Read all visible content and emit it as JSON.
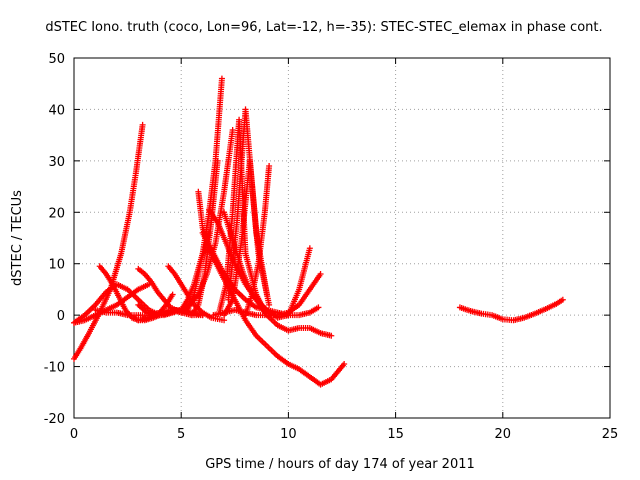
{
  "chart_data": {
    "type": "scatter",
    "title": "dSTEC Iono. truth (coco, Lon=96, Lat=-12, h=-35): STEC-STEC_elemax in phase cont.",
    "xlabel": "GPS time / hours of day 174 of year 2011",
    "ylabel": "dSTEC  / TECUs",
    "xlim": [
      0,
      25
    ],
    "ylim": [
      -20,
      50
    ],
    "xticks": [
      0,
      5,
      10,
      15,
      20,
      25
    ],
    "yticks": [
      -20,
      -10,
      0,
      10,
      20,
      30,
      40,
      50
    ],
    "grid": true,
    "marker": "plus",
    "color": "#ff0000",
    "series": [
      {
        "x": [
          0.0,
          0.3,
          0.7,
          1.2,
          1.7,
          2.2,
          2.6,
          2.9,
          3.2
        ],
        "y": [
          -8.5,
          -6.5,
          -3.5,
          0.5,
          5,
          12,
          20,
          28,
          37
        ]
      },
      {
        "x": [
          0.0,
          0.5,
          1.0,
          1.5,
          2.0,
          2.5,
          3.0,
          3.5,
          4.0
        ],
        "y": [
          -1.5,
          0,
          2,
          4.5,
          6,
          5,
          3,
          1,
          0
        ]
      },
      {
        "x": [
          0.0,
          0.5,
          1.0,
          1.5,
          2.0,
          2.5,
          3.0,
          3.5
        ],
        "y": [
          -1.5,
          -1,
          0,
          1,
          2,
          3.5,
          5,
          6
        ]
      },
      {
        "x": [
          1.2,
          1.5,
          1.8,
          2.1,
          2.4,
          2.7,
          3.0,
          3.3,
          3.7,
          4.0
        ],
        "y": [
          9.5,
          8,
          6,
          3.5,
          1,
          -0.5,
          -1,
          -1,
          -0.5,
          0
        ]
      },
      {
        "x": [
          1.0,
          1.5,
          2.0,
          2.5,
          3.0,
          3.5,
          4.0,
          4.5,
          5.0,
          5.5,
          6.0
        ],
        "y": [
          1,
          0.5,
          0.5,
          0,
          0,
          0,
          0.5,
          1,
          1,
          0.5,
          0
        ]
      },
      {
        "x": [
          3.0,
          3.3,
          3.6,
          3.9,
          4.2,
          4.5,
          5.0,
          5.5,
          6.0
        ],
        "y": [
          9,
          8,
          6.5,
          4.5,
          3,
          1.5,
          0.5,
          0,
          0
        ]
      },
      {
        "x": [
          3.0,
          3.4,
          3.8,
          4.2,
          4.6,
          5.0,
          5.4,
          5.8,
          6.2,
          6.6,
          7.0,
          7.4
        ],
        "y": [
          2,
          0.5,
          0,
          0,
          0.5,
          1,
          2,
          4,
          8,
          14,
          24,
          36
        ]
      },
      {
        "x": [
          3.0,
          3.5,
          4.0,
          4.3,
          4.6
        ],
        "y": [
          -1,
          -0.5,
          0.5,
          2,
          4
        ]
      },
      {
        "x": [
          4.0,
          4.5,
          5.0,
          5.3,
          5.6,
          6.0,
          6.3,
          6.6,
          6.9
        ],
        "y": [
          0,
          0.5,
          1,
          3,
          6,
          12,
          20,
          30,
          46
        ]
      },
      {
        "x": [
          4.4,
          4.7,
          5.0,
          5.3,
          5.6,
          6.0,
          6.4,
          7.0
        ],
        "y": [
          9.5,
          8,
          6,
          4,
          2,
          0.5,
          -0.5,
          -1
        ]
      },
      {
        "x": [
          4.6,
          5.0,
          5.3,
          5.6,
          5.9,
          6.3
        ],
        "y": [
          1,
          0.5,
          1,
          4,
          10,
          16
        ]
      },
      {
        "x": [
          5.5,
          5.8,
          6.1,
          6.4,
          6.7
        ],
        "y": [
          0,
          2,
          8,
          18,
          30
        ]
      },
      {
        "x": [
          5.8,
          6.0,
          6.4,
          7.0,
          7.5,
          8.0,
          8.5,
          9.0,
          9.5,
          10.0,
          10.5,
          11.0,
          11.5,
          12.0,
          12.6
        ],
        "y": [
          24,
          17,
          12,
          7,
          3,
          -1,
          -4,
          -6,
          -8,
          -9.5,
          -10.5,
          -12,
          -13.5,
          -12.5,
          -9.5
        ]
      },
      {
        "x": [
          6.0,
          6.5,
          7.0,
          7.5,
          8.0,
          8.5,
          9.0,
          9.5,
          10.0,
          10.5,
          11.0,
          11.4
        ],
        "y": [
          16,
          12,
          8,
          5,
          3,
          1.5,
          1,
          0.5,
          0,
          0,
          0.5,
          1.5
        ]
      },
      {
        "x": [
          6.3,
          6.7,
          7.1,
          7.5,
          8.0,
          8.5,
          9.0,
          9.5,
          10.0,
          10.5,
          11.0,
          11.5,
          12.0
        ],
        "y": [
          20.5,
          18,
          14,
          10,
          6,
          3,
          0,
          -2,
          -3,
          -2.5,
          -2.5,
          -3.5,
          -4
        ]
      },
      {
        "x": [
          6.5,
          7.0,
          7.5,
          8.0,
          8.5,
          9.0,
          9.5,
          10.0,
          10.5,
          11.0,
          11.5
        ],
        "y": [
          0,
          0.5,
          1,
          0.5,
          0,
          0,
          0,
          0.5,
          2,
          5,
          8
        ]
      },
      {
        "x": [
          7.0,
          7.3,
          7.6,
          7.9,
          8.2,
          8.5,
          9.0,
          9.5,
          10.0,
          10.5,
          11.0
        ],
        "y": [
          20,
          16,
          12,
          8,
          5,
          3,
          1,
          -0.5,
          0,
          5,
          13
        ]
      },
      {
        "x": [
          6.8,
          7.1,
          7.4,
          7.7,
          8.0,
          8.5,
          9.0
        ],
        "y": [
          1,
          6,
          20,
          38,
          12,
          4,
          0
        ]
      },
      {
        "x": [
          7.0,
          7.4,
          7.8,
          8.2,
          8.6,
          9.1
        ],
        "y": [
          0,
          3,
          14,
          30,
          12,
          2
        ]
      },
      {
        "x": [
          7.2,
          7.6,
          8.0,
          8.5,
          9.0
        ],
        "y": [
          3,
          18,
          40,
          16,
          4
        ]
      },
      {
        "x": [
          8.0,
          8.3,
          8.6,
          8.9,
          9.1
        ],
        "y": [
          0,
          4,
          10,
          20,
          29
        ]
      },
      {
        "x": [
          18.0,
          18.5,
          19.0,
          19.5,
          20.0,
          20.5,
          21.0,
          21.5,
          22.0,
          22.5,
          22.8
        ],
        "y": [
          1.5,
          0.8,
          0.3,
          0,
          -0.8,
          -1,
          -0.5,
          0.3,
          1.2,
          2.2,
          3
        ]
      }
    ]
  }
}
